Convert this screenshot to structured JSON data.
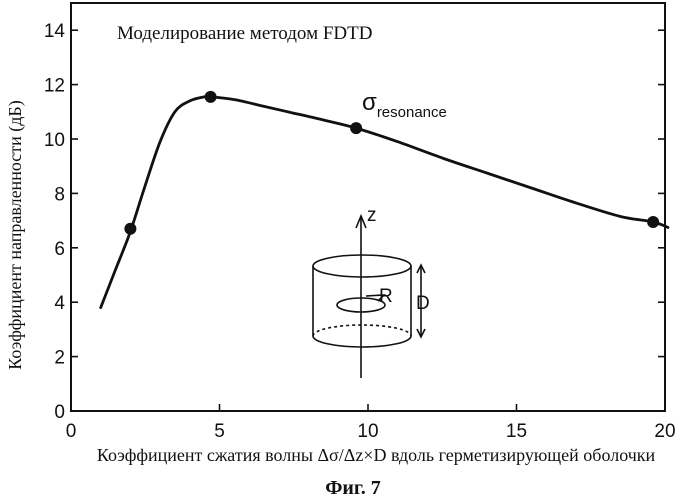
{
  "chart_data": {
    "type": "line",
    "title": "Моделирование методом FDTD",
    "xlabel": "Коэффициент сжатия волны Δσ/Δz×D вдоль герметизирующей оболочки",
    "ylabel": "Коэффициент направленности (дБ)",
    "xlim": [
      0,
      20
    ],
    "ylim": [
      0,
      15
    ],
    "x_ticks": [
      0,
      5,
      10,
      15,
      20
    ],
    "y_ticks": [
      0,
      2,
      4,
      6,
      8,
      10,
      12,
      14
    ],
    "grid": false,
    "legend": "none",
    "series": [
      {
        "curve_x": [
          1.0,
          1.5,
          2.0,
          2.5,
          3.0,
          3.5,
          4.0,
          4.5,
          4.7,
          5.5,
          6.5,
          7.5,
          8.5,
          9.6,
          11.0,
          12.5,
          14.0,
          15.5,
          17.0,
          18.5,
          19.6,
          20.1
        ],
        "curve_y": [
          3.8,
          5.2,
          6.6,
          8.3,
          9.9,
          11.0,
          11.4,
          11.55,
          11.55,
          11.45,
          11.2,
          10.95,
          10.7,
          10.4,
          9.9,
          9.3,
          8.75,
          8.2,
          7.65,
          7.15,
          6.95,
          6.75
        ],
        "points_x": [
          2.0,
          4.7,
          9.6,
          19.6
        ],
        "points_y": [
          6.7,
          11.55,
          10.4,
          6.95
        ]
      }
    ],
    "annotations": {
      "resonance_symbol": "σ",
      "resonance_subscript": "resonance",
      "inset_z": "z",
      "inset_r": "R",
      "inset_d": "D"
    }
  },
  "caption": "Фиг. 7"
}
